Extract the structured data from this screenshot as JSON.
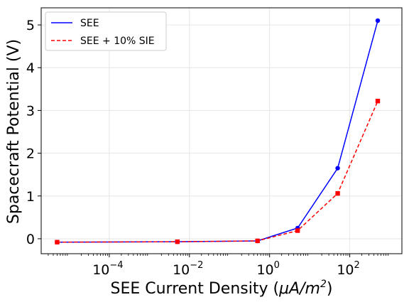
{
  "chart_data": {
    "type": "line",
    "xscale": "log",
    "xlim": [
      2e-06,
      2000
    ],
    "ylim": [
      -0.35,
      5.4
    ],
    "grid": true,
    "legend_position": "top-left",
    "xlabel_text": "SEE Current Density (",
    "xlabel_unit": "μA/m",
    "xlabel_exp": "2",
    "xlabel_close": ")",
    "ylabel": "Spacecraft Potential (V)",
    "x_ticks": [
      {
        "value": 0.0001,
        "base": "10",
        "exp": "−4"
      },
      {
        "value": 0.01,
        "base": "10",
        "exp": "−2"
      },
      {
        "value": 1,
        "base": "10",
        "exp": "0"
      },
      {
        "value": 100,
        "base": "10",
        "exp": "2"
      }
    ],
    "y_ticks": [
      {
        "value": 0,
        "label": "0"
      },
      {
        "value": 1,
        "label": "1"
      },
      {
        "value": 2,
        "label": "2"
      },
      {
        "value": 3,
        "label": "3"
      },
      {
        "value": 4,
        "label": "4"
      },
      {
        "value": 5,
        "label": "5"
      }
    ],
    "x": [
      5e-06,
      0.005,
      0.5,
      5,
      50,
      500
    ],
    "series": [
      {
        "name": "SEE",
        "color": "#0000ff",
        "dash": "solid",
        "marker": "circle",
        "values": [
          -0.08,
          -0.07,
          -0.05,
          0.25,
          1.65,
          5.1
        ]
      },
      {
        "name": "SEE + 10% SIE",
        "color": "#ff0000",
        "dash": "dashed",
        "marker": "square",
        "values": [
          -0.08,
          -0.07,
          -0.05,
          0.19,
          1.06,
          3.22
        ]
      }
    ]
  }
}
